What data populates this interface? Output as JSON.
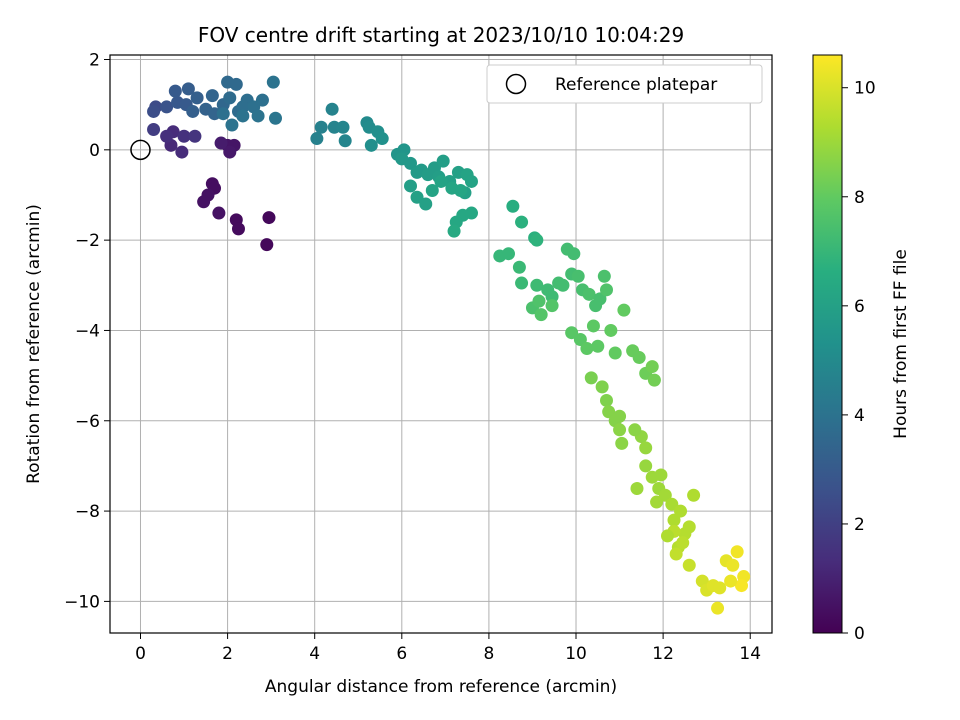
{
  "chart_data": {
    "type": "scatter",
    "title": "FOV centre drift starting at 2023/10/10 10:04:29",
    "xlabel": "Angular distance from reference (arcmin)",
    "ylabel": "Rotation from reference (arcmin)",
    "xlim": [
      -0.7,
      14.5
    ],
    "ylim": [
      -10.7,
      2.1
    ],
    "xticks": [
      0,
      2,
      4,
      6,
      8,
      10,
      12,
      14
    ],
    "yticks": [
      2,
      0,
      -2,
      -4,
      -6,
      -8,
      -10
    ],
    "xtick_labels": [
      "0",
      "2",
      "4",
      "6",
      "8",
      "10",
      "12",
      "14"
    ],
    "ytick_labels": [
      "2",
      "0",
      "−2",
      "−4",
      "−6",
      "−8",
      "−10"
    ],
    "grid": true,
    "legend": {
      "position": "top-right",
      "label": "Reference platepar"
    },
    "reference_point": {
      "x": 0,
      "y": 0
    },
    "colorbar": {
      "label": "Hours from first FF file",
      "colormap": "viridis",
      "range": [
        0,
        10.6
      ],
      "ticks": [
        0,
        2,
        4,
        6,
        8,
        10
      ],
      "tick_labels": [
        "0",
        "2",
        "4",
        "6",
        "8",
        "10"
      ]
    },
    "points": [
      [
        1.65,
        -0.75,
        0.4
      ],
      [
        1.7,
        -0.85,
        0.4
      ],
      [
        1.55,
        -1.0,
        0.5
      ],
      [
        1.45,
        -1.15,
        0.5
      ],
      [
        1.8,
        -1.4,
        0.5
      ],
      [
        2.2,
        -1.55,
        0.3
      ],
      [
        2.25,
        -1.75,
        0.3
      ],
      [
        2.95,
        -1.5,
        0.2
      ],
      [
        2.9,
        -2.1,
        0.2
      ],
      [
        2.0,
        0.1,
        0.6
      ],
      [
        2.15,
        0.1,
        0.6
      ],
      [
        2.05,
        -0.05,
        0.7
      ],
      [
        1.85,
        0.15,
        0.8
      ],
      [
        0.7,
        0.1,
        1.2
      ],
      [
        0.75,
        0.4,
        1.3
      ],
      [
        0.95,
        -0.05,
        1.3
      ],
      [
        0.6,
        0.3,
        1.4
      ],
      [
        1.0,
        0.3,
        1.5
      ],
      [
        1.25,
        0.3,
        1.6
      ],
      [
        0.3,
        0.45,
        1.9
      ],
      [
        0.35,
        0.95,
        2.4
      ],
      [
        0.3,
        0.85,
        2.5
      ],
      [
        0.6,
        0.95,
        2.7
      ],
      [
        0.85,
        1.05,
        2.9
      ],
      [
        0.8,
        1.3,
        3.0
      ],
      [
        1.1,
        1.35,
        3.1
      ],
      [
        1.05,
        1.0,
        3.0
      ],
      [
        1.3,
        1.15,
        3.2
      ],
      [
        1.5,
        0.9,
        3.3
      ],
      [
        1.65,
        1.2,
        3.4
      ],
      [
        1.7,
        0.8,
        3.4
      ],
      [
        1.9,
        1.0,
        3.5
      ],
      [
        2.0,
        1.5,
        3.6
      ],
      [
        2.2,
        1.45,
        3.6
      ],
      [
        2.05,
        1.15,
        3.7
      ],
      [
        2.25,
        0.85,
        3.7
      ],
      [
        2.45,
        1.1,
        3.8
      ],
      [
        2.35,
        0.95,
        3.8
      ],
      [
        2.6,
        0.95,
        3.9
      ],
      [
        2.8,
        1.1,
        3.9
      ],
      [
        2.7,
        0.75,
        4.0
      ],
      [
        3.05,
        1.5,
        4.0
      ],
      [
        3.1,
        0.7,
        4.1
      ],
      [
        2.1,
        0.55,
        4.0
      ],
      [
        2.35,
        0.75,
        4.0
      ],
      [
        1.9,
        0.8,
        3.9
      ],
      [
        1.2,
        0.85,
        3.2
      ],
      [
        4.05,
        0.25,
        4.6
      ],
      [
        4.15,
        0.5,
        4.6
      ],
      [
        4.4,
        0.9,
        4.7
      ],
      [
        4.45,
        0.5,
        4.7
      ],
      [
        4.65,
        0.5,
        4.8
      ],
      [
        4.7,
        0.2,
        4.8
      ],
      [
        5.2,
        0.6,
        5.0
      ],
      [
        5.25,
        0.5,
        5.1
      ],
      [
        5.3,
        0.1,
        5.2
      ],
      [
        5.45,
        0.4,
        5.2
      ],
      [
        5.55,
        0.25,
        5.3
      ],
      [
        5.9,
        -0.1,
        5.5
      ],
      [
        6.05,
        0.0,
        5.5
      ],
      [
        6.2,
        -0.3,
        5.6
      ],
      [
        6.0,
        -0.2,
        5.6
      ],
      [
        6.35,
        -0.5,
        5.7
      ],
      [
        6.45,
        -0.45,
        5.7
      ],
      [
        6.6,
        -0.55,
        5.8
      ],
      [
        6.75,
        -0.4,
        5.8
      ],
      [
        6.85,
        -0.6,
        5.9
      ],
      [
        6.95,
        -0.25,
        5.9
      ],
      [
        7.1,
        -0.7,
        6.0
      ],
      [
        7.3,
        -0.5,
        6.0
      ],
      [
        7.5,
        -0.55,
        6.1
      ],
      [
        7.6,
        -0.7,
        6.1
      ],
      [
        7.45,
        -0.95,
        6.0
      ],
      [
        6.2,
        -0.8,
        5.9
      ],
      [
        6.35,
        -1.05,
        6.0
      ],
      [
        6.55,
        -1.2,
        6.0
      ],
      [
        6.7,
        -0.9,
        6.1
      ],
      [
        6.9,
        -0.7,
        6.1
      ],
      [
        7.15,
        -0.85,
        6.2
      ],
      [
        7.35,
        -0.9,
        6.2
      ],
      [
        7.6,
        -1.4,
        6.3
      ],
      [
        7.4,
        -1.45,
        6.3
      ],
      [
        7.25,
        -1.6,
        6.3
      ],
      [
        7.2,
        -1.8,
        6.4
      ],
      [
        8.55,
        -1.25,
        6.6
      ],
      [
        8.75,
        -1.6,
        6.7
      ],
      [
        9.05,
        -1.95,
        6.7
      ],
      [
        9.1,
        -2.0,
        6.8
      ],
      [
        8.25,
        -2.35,
        7.0
      ],
      [
        8.45,
        -2.3,
        7.0
      ],
      [
        8.7,
        -2.6,
        7.1
      ],
      [
        8.75,
        -2.95,
        7.1
      ],
      [
        9.1,
        -3.0,
        7.2
      ],
      [
        9.35,
        -3.1,
        7.2
      ],
      [
        9.6,
        -2.95,
        7.3
      ],
      [
        9.45,
        -3.25,
        7.2
      ],
      [
        9.7,
        -3.0,
        7.3
      ],
      [
        9.8,
        -2.2,
        7.3
      ],
      [
        9.95,
        -2.3,
        7.3
      ],
      [
        9.9,
        -2.75,
        7.3
      ],
      [
        10.05,
        -2.8,
        7.4
      ],
      [
        10.15,
        -3.1,
        7.4
      ],
      [
        10.3,
        -3.2,
        7.5
      ],
      [
        10.45,
        -3.45,
        7.4
      ],
      [
        10.55,
        -3.3,
        7.4
      ],
      [
        10.65,
        -2.8,
        7.5
      ],
      [
        10.7,
        -3.1,
        7.6
      ],
      [
        9.0,
        -3.5,
        7.5
      ],
      [
        9.15,
        -3.35,
        7.6
      ],
      [
        9.2,
        -3.65,
        7.7
      ],
      [
        9.45,
        -3.45,
        7.7
      ],
      [
        9.9,
        -4.05,
        7.8
      ],
      [
        10.1,
        -4.2,
        7.8
      ],
      [
        10.25,
        -4.4,
        7.9
      ],
      [
        10.5,
        -4.35,
        7.9
      ],
      [
        10.4,
        -3.9,
        7.9
      ],
      [
        10.8,
        -4.0,
        8.0
      ],
      [
        10.9,
        -4.5,
        8.0
      ],
      [
        11.1,
        -3.55,
        8.0
      ],
      [
        11.3,
        -4.45,
        8.1
      ],
      [
        11.45,
        -4.6,
        8.1
      ],
      [
        11.6,
        -4.95,
        8.2
      ],
      [
        11.75,
        -4.8,
        8.3
      ],
      [
        11.8,
        -5.1,
        8.3
      ],
      [
        10.35,
        -5.05,
        8.4
      ],
      [
        10.6,
        -5.25,
        8.5
      ],
      [
        10.7,
        -5.55,
        8.5
      ],
      [
        10.75,
        -5.8,
        8.6
      ],
      [
        10.9,
        -6.0,
        8.6
      ],
      [
        11.0,
        -6.2,
        8.7
      ],
      [
        11.05,
        -6.5,
        8.7
      ],
      [
        11.5,
        -6.35,
        8.8
      ],
      [
        11.6,
        -6.6,
        8.9
      ],
      [
        11.6,
        -7.0,
        8.9
      ],
      [
        11.75,
        -7.25,
        9.0
      ],
      [
        11.9,
        -7.5,
        9.0
      ],
      [
        11.85,
        -7.8,
        9.1
      ],
      [
        12.05,
        -7.65,
        9.1
      ],
      [
        12.2,
        -7.85,
        9.2
      ],
      [
        12.25,
        -8.2,
        9.3
      ],
      [
        12.4,
        -8.0,
        9.3
      ],
      [
        12.5,
        -8.5,
        9.4
      ],
      [
        12.35,
        -8.8,
        9.4
      ],
      [
        12.6,
        -8.35,
        9.4
      ],
      [
        12.7,
        -7.65,
        9.3
      ],
      [
        12.25,
        -8.45,
        9.5
      ],
      [
        12.45,
        -8.7,
        9.5
      ],
      [
        12.3,
        -8.95,
        9.6
      ],
      [
        12.6,
        -9.2,
        9.7
      ],
      [
        12.9,
        -9.55,
        9.9
      ],
      [
        13.0,
        -9.75,
        10.0
      ],
      [
        13.15,
        -9.65,
        10.1
      ],
      [
        13.3,
        -9.7,
        10.1
      ],
      [
        13.45,
        -9.1,
        10.2
      ],
      [
        13.6,
        -9.2,
        10.3
      ],
      [
        13.7,
        -8.9,
        10.4
      ],
      [
        13.85,
        -9.45,
        10.4
      ],
      [
        13.8,
        -9.65,
        10.5
      ],
      [
        13.25,
        -10.15,
        10.3
      ],
      [
        13.55,
        -9.55,
        10.3
      ],
      [
        11.35,
        -6.2,
        8.7
      ],
      [
        11.0,
        -5.9,
        8.6
      ],
      [
        11.95,
        -7.2,
        9.0
      ],
      [
        11.4,
        -7.5,
        9.0
      ],
      [
        12.1,
        -8.55,
        9.3
      ]
    ]
  }
}
